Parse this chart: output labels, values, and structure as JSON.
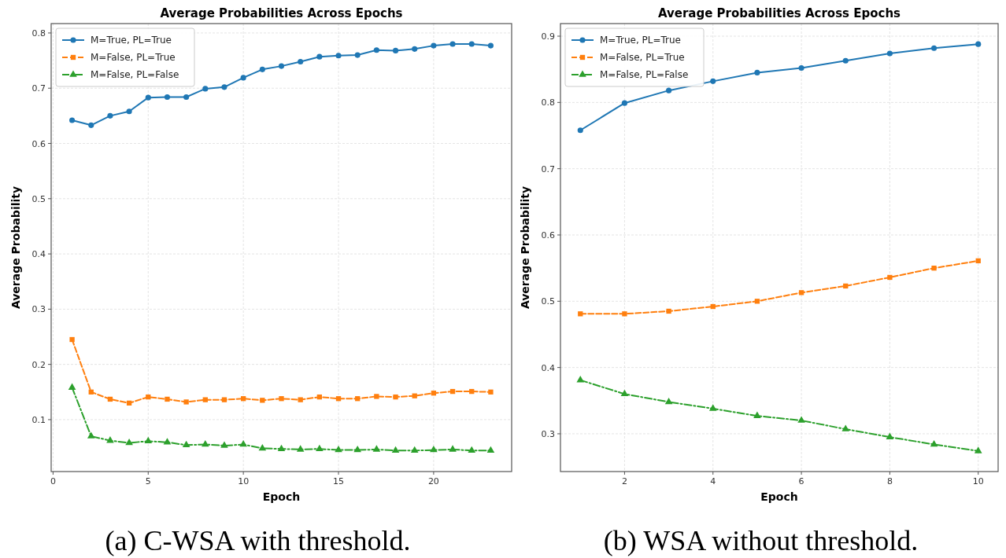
{
  "chart_data": [
    {
      "type": "line",
      "title": "Average Probabilities Across Epochs",
      "xlabel": "Epoch",
      "ylabel": "Average Probability",
      "annotations": [
        "(a) C-WSA with threshold."
      ],
      "grid": true,
      "legend": "top left",
      "xlim": [
        -0.1,
        24.1
      ],
      "xticks": [
        0,
        5,
        10,
        15,
        20
      ],
      "ylim": [
        0.006,
        0.817
      ],
      "yticks": [
        0.1,
        0.2,
        0.3,
        0.4,
        0.5,
        0.6,
        0.7,
        0.8
      ],
      "x": [
        1,
        2,
        3,
        4,
        5,
        6,
        7,
        8,
        9,
        10,
        11,
        12,
        13,
        14,
        15,
        16,
        17,
        18,
        19,
        20,
        21,
        22,
        23
      ],
      "series": [
        {
          "name": "M=True, PL=True",
          "color": "#1f77b4",
          "marker": "circle",
          "line_style": "solid",
          "values": [
            0.642,
            0.633,
            0.65,
            0.658,
            0.683,
            0.684,
            0.684,
            0.699,
            0.702,
            0.719,
            0.734,
            0.74,
            0.748,
            0.757,
            0.759,
            0.76,
            0.769,
            0.768,
            0.771,
            0.777,
            0.78,
            0.78,
            0.777
          ]
        },
        {
          "name": "M=False, PL=True",
          "color": "#ff7f0e",
          "marker": "square",
          "line_style": "dashed",
          "values": [
            0.245,
            0.15,
            0.137,
            0.13,
            0.141,
            0.137,
            0.132,
            0.136,
            0.136,
            0.138,
            0.135,
            0.138,
            0.136,
            0.141,
            0.138,
            0.138,
            0.142,
            0.141,
            0.143,
            0.148,
            0.151,
            0.151,
            0.15
          ]
        },
        {
          "name": "M=False, PL=False",
          "color": "#2ca02c",
          "marker": "triangle",
          "line_style": "dashdot",
          "values": [
            0.158,
            0.07,
            0.062,
            0.058,
            0.061,
            0.059,
            0.054,
            0.055,
            0.053,
            0.055,
            0.048,
            0.047,
            0.046,
            0.047,
            0.045,
            0.045,
            0.046,
            0.044,
            0.044,
            0.045,
            0.046,
            0.044,
            0.044
          ]
        }
      ]
    },
    {
      "type": "line",
      "title": "Average Probabilities Across Epochs",
      "xlabel": "Epoch",
      "ylabel": "Average Probability",
      "annotations": [
        "(b) WSA without threshold."
      ],
      "grid": true,
      "legend": "top left",
      "xlim": [
        0.55,
        10.45
      ],
      "xticks": [
        2,
        4,
        6,
        8,
        10
      ],
      "ylim": [
        0.243,
        0.919
      ],
      "yticks": [
        0.3,
        0.4,
        0.5,
        0.6,
        0.7,
        0.8,
        0.9
      ],
      "x": [
        1,
        2,
        3,
        4,
        5,
        6,
        7,
        8,
        9,
        10
      ],
      "series": [
        {
          "name": "M=True, PL=True",
          "color": "#1f77b4",
          "marker": "circle",
          "line_style": "solid",
          "values": [
            0.758,
            0.799,
            0.818,
            0.832,
            0.845,
            0.852,
            0.863,
            0.874,
            0.882,
            0.888
          ]
        },
        {
          "name": "M=False, PL=True",
          "color": "#ff7f0e",
          "marker": "square",
          "line_style": "dashed",
          "values": [
            0.481,
            0.481,
            0.485,
            0.492,
            0.5,
            0.513,
            0.523,
            0.536,
            0.55,
            0.561
          ]
        },
        {
          "name": "M=False, PL=False",
          "color": "#2ca02c",
          "marker": "triangle",
          "line_style": "dashdot",
          "values": [
            0.381,
            0.36,
            0.348,
            0.338,
            0.327,
            0.32,
            0.307,
            0.295,
            0.284,
            0.274
          ]
        }
      ]
    }
  ]
}
